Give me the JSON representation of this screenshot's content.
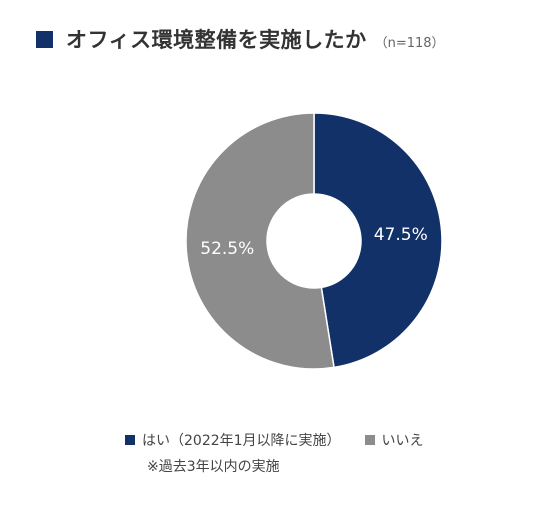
{
  "chart_data": {
    "type": "pie",
    "variant": "donut",
    "title": "オフィス環境整備を実施したか",
    "sample_size": "（n=118）",
    "slices": [
      {
        "label": "はい（2022年1月以降に実施）",
        "value": 47.5,
        "data_label": "47.5%",
        "color": "#123168"
      },
      {
        "label": "いいえ",
        "value": 52.5,
        "data_label": "52.5%",
        "color": "#8c8c8c"
      }
    ],
    "legend_position": "bottom",
    "note": "※過去3年以内の実施"
  }
}
